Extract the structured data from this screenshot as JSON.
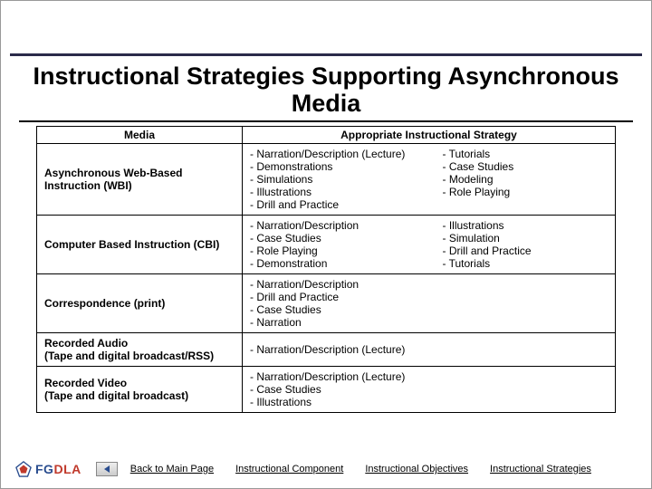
{
  "title": "Instructional Strategies Supporting Asynchronous Media",
  "table": {
    "headers": {
      "media": "Media",
      "strategy": "Appropriate Instructional Strategy"
    },
    "rows": [
      {
        "media": "Asynchronous Web-Based Instruction (WBI)",
        "left": [
          "- Narration/Description (Lecture)",
          "- Demonstrations",
          "- Simulations",
          "- Illustrations",
          "- Drill and Practice"
        ],
        "right": [
          "- Tutorials",
          "- Case Studies",
          "- Modeling",
          "- Role Playing"
        ]
      },
      {
        "media": "Computer Based Instruction (CBI)",
        "left": [
          "- Narration/Description",
          "- Case Studies",
          "- Role Playing",
          "- Demonstration"
        ],
        "right": [
          "- Illustrations",
          "- Simulation",
          "- Drill and Practice",
          "- Tutorials"
        ]
      },
      {
        "media": "Correspondence (print)",
        "left": [
          "- Narration/Description",
          "- Drill and Practice",
          "- Case Studies",
          "- Narration"
        ],
        "right": []
      },
      {
        "media": "Recorded Audio\n(Tape and digital broadcast/RSS)",
        "left": [
          "- Narration/Description (Lecture)"
        ],
        "right": []
      },
      {
        "media": "Recorded Video\n(Tape and digital broadcast)",
        "left": [
          "- Narration/Description (Lecture)",
          "- Case Studies",
          "- Illustrations"
        ],
        "right": []
      }
    ]
  },
  "footer": {
    "logo": "FGDLA",
    "links": [
      "Back to Main Page",
      "Instructional Component",
      "Instructional Objectives",
      "Instructional Strategies"
    ]
  },
  "colors": {
    "rule": "#2a2a4a",
    "link": "#000000",
    "logo_blue": "#2a4d8f",
    "logo_red": "#c0392b"
  }
}
